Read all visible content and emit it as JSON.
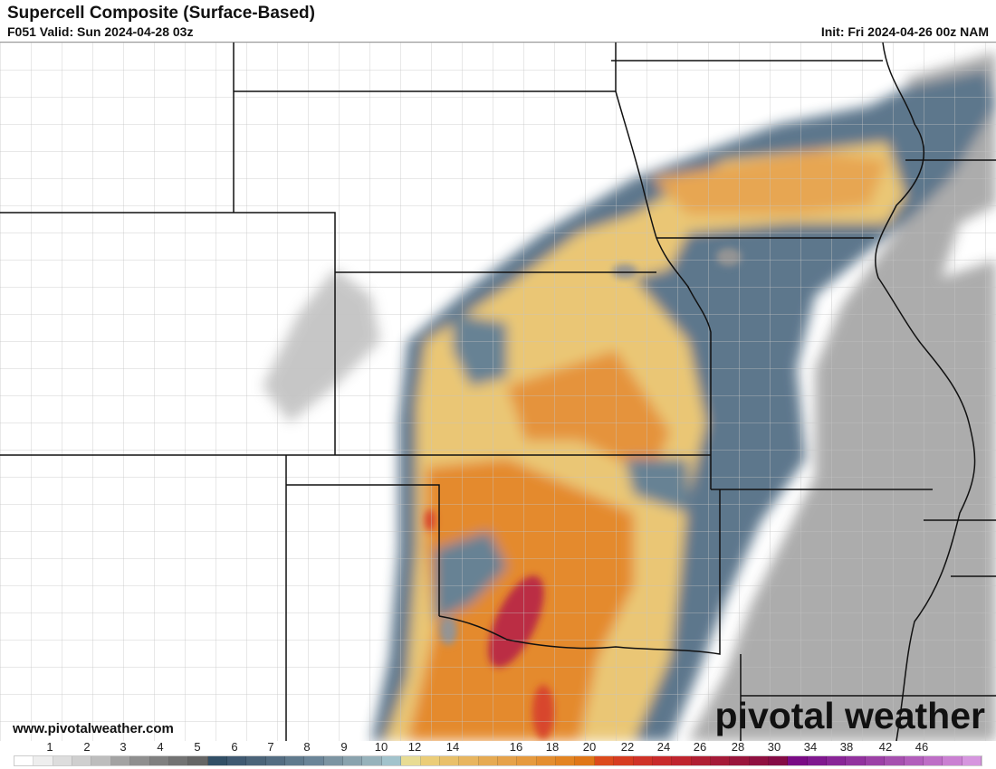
{
  "header": {
    "title": "Supercell Composite (Surface-Based)",
    "valid": "F051 Valid: Sun 2024-04-28 03z",
    "init": "Init: Fri 2024-04-26 00z NAM"
  },
  "footer": {
    "website": "www.pivotalweather.com",
    "logo": "pivotal weather"
  },
  "colorbar": {
    "labels": [
      "1",
      "2",
      "3",
      "4",
      "5",
      "6",
      "7",
      "8",
      "9",
      "10",
      "12",
      "14",
      "16",
      "18",
      "20",
      "22",
      "24",
      "26",
      "28",
      "30",
      "34",
      "38",
      "42",
      "46"
    ],
    "colors": [
      "#ffffff",
      "#eeeeee",
      "#dddddd",
      "#cfcfcf",
      "#bdbdbd",
      "#a3a3a3",
      "#8f8f8f",
      "#808080",
      "#737373",
      "#666666",
      "#324f66",
      "#405a72",
      "#4b6479",
      "#546d82",
      "#607a8d",
      "#6b8598",
      "#7c94a2",
      "#8aa3ae",
      "#97b2bb",
      "#a2c3cc",
      "#e8dc94",
      "#ebcd78",
      "#e9c06a",
      "#e8b55f",
      "#e6aa52",
      "#e6a24a",
      "#e69a3e",
      "#e48e30",
      "#e38422",
      "#e07718",
      "#dc4a1c",
      "#d63c20",
      "#cf3227",
      "#c82a2b",
      "#bf242e",
      "#b01f33",
      "#a51a38",
      "#9a153c",
      "#8f1040",
      "#850b45",
      "#7a0b85",
      "#80188f",
      "#892597",
      "#92329e",
      "#9c40a6",
      "#a650af",
      "#b25ebb",
      "#be6ec6",
      "#ca80d2",
      "#d696df"
    ]
  },
  "field_colors": {
    "gray": "#9a9a9a",
    "blue": "#5a7488",
    "yellow": "#e9c46e",
    "orange": "#e48a30",
    "red": "#b8223a",
    "border": "#111111",
    "county": "#bdbdbd"
  }
}
